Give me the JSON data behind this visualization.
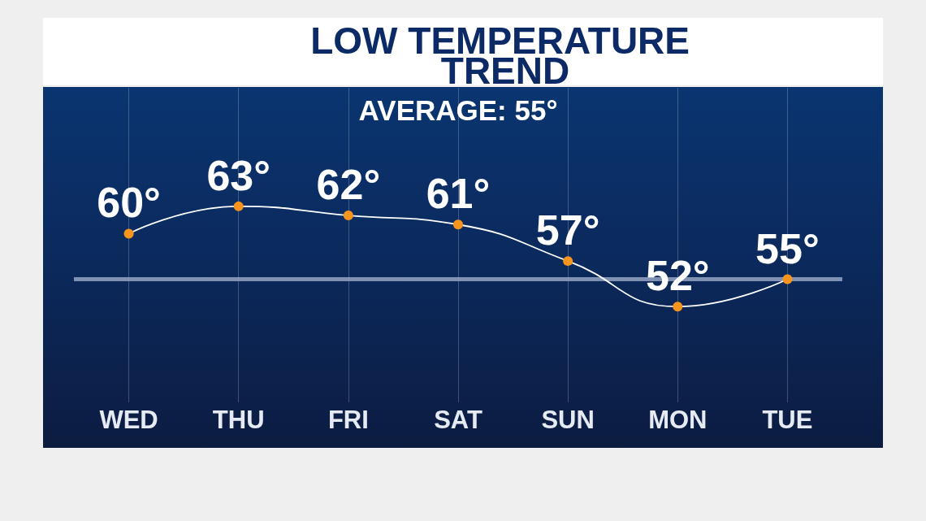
{
  "chart_data": {
    "type": "line",
    "title": "LOW TEMPERATURE TREND",
    "categories": [
      "WED",
      "THU",
      "FRI",
      "SAT",
      "SUN",
      "MON",
      "TUE"
    ],
    "values": [
      60,
      63,
      62,
      61,
      57,
      52,
      55
    ],
    "value_labels": [
      "60°",
      "63°",
      "62°",
      "61°",
      "57°",
      "52°",
      "55°"
    ],
    "color": "#ffffff",
    "colors": [
      "#f7941d",
      "#f7941d",
      "#f7941d",
      "#f7941d",
      "#f7941d",
      "#f7941d",
      "#f7941d"
    ],
    "ylim": [
      41.5,
      76
    ],
    "tick_labels": "x",
    "grid": "x",
    "marker": "circle",
    "line_style": "solid",
    "ref_lines": [
      {
        "axis": "y",
        "value": 55,
        "color": "#8d9dbd"
      }
    ],
    "annotations": [
      "AVERAGE: 55°"
    ]
  }
}
